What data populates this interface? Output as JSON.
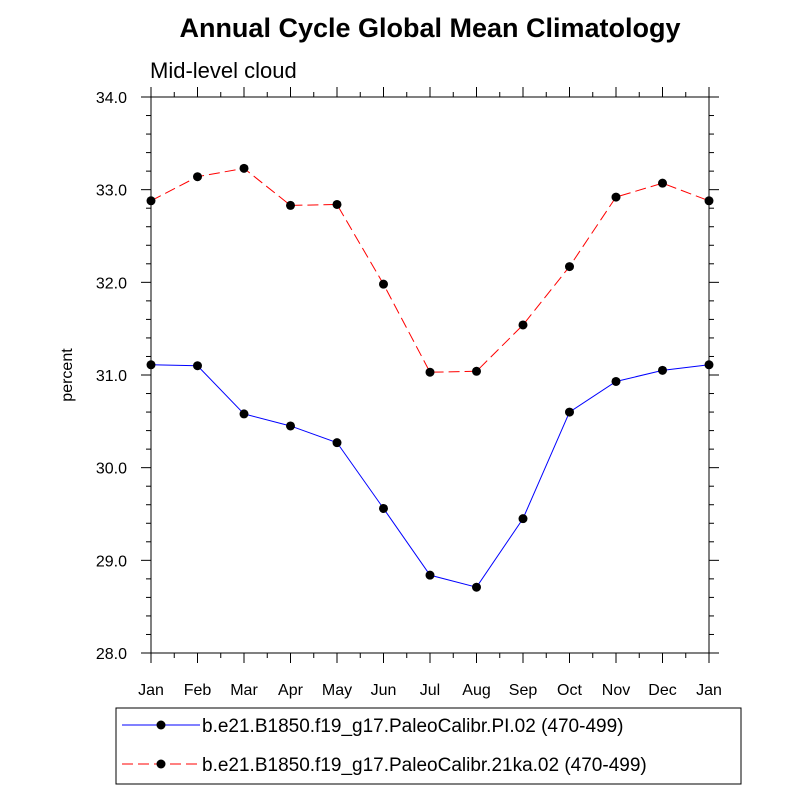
{
  "chart_data": {
    "type": "line",
    "title": "Annual Cycle Global Mean Climatology",
    "subtitle": "Mid-level cloud",
    "xlabel": "",
    "ylabel": "percent",
    "categories": [
      "Jan",
      "Feb",
      "Mar",
      "Apr",
      "May",
      "Jun",
      "Jul",
      "Aug",
      "Sep",
      "Oct",
      "Nov",
      "Dec",
      "Jan"
    ],
    "ylim": [
      28.0,
      34.0
    ],
    "yticks": [
      "28.0",
      "29.0",
      "30.0",
      "31.0",
      "32.0",
      "33.0",
      "34.0"
    ],
    "grid": false,
    "legend_position": "bottom",
    "series": [
      {
        "name": "b.e21.B1850.f19_g17.PaleoCalibr.PI.02 (470-499)",
        "color": "#0000ff",
        "line_style": "solid",
        "marker": "filled-circle",
        "values": [
          31.11,
          31.1,
          30.58,
          30.45,
          30.27,
          29.56,
          28.84,
          28.71,
          29.45,
          30.6,
          30.93,
          31.05,
          31.11
        ]
      },
      {
        "name": "b.e21.B1850.f19_g17.PaleoCalibr.21ka.02 (470-499)",
        "color": "#ff0000",
        "line_style": "dashed",
        "marker": "filled-circle",
        "values": [
          32.88,
          33.14,
          33.23,
          32.83,
          32.84,
          31.98,
          31.03,
          31.04,
          31.54,
          32.17,
          32.92,
          33.07,
          32.88
        ]
      }
    ]
  }
}
